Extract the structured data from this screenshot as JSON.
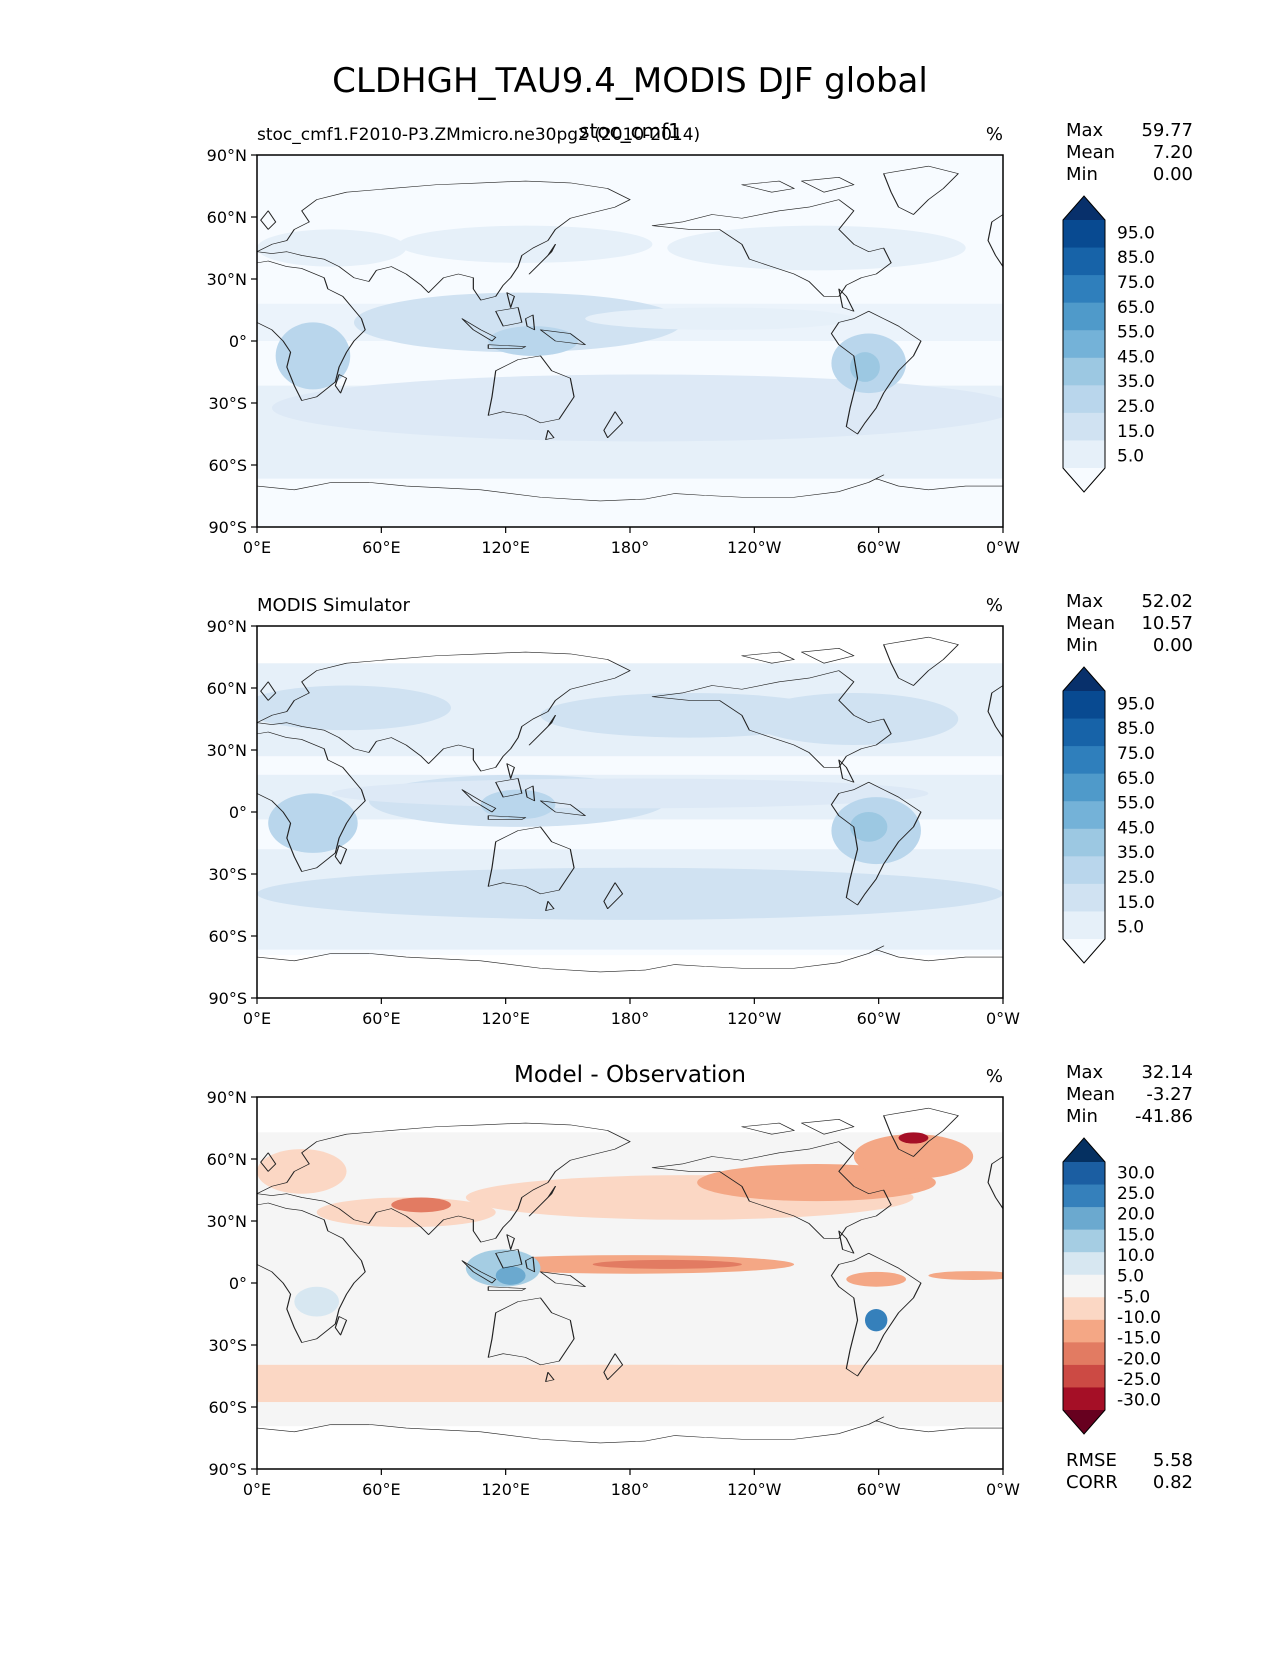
{
  "title": "CLDHGH_TAU9.4_MODIS DJF global",
  "panels": [
    {
      "left_title": "stoc_cmf1.F2010-P3.ZMmicro.ne30pg2 (2010-2014)",
      "center_title": "stoc_cmf1",
      "units": "%",
      "stats": [
        {
          "label": "Max",
          "value": "59.77"
        },
        {
          "label": "Mean",
          "value": "7.20"
        },
        {
          "label": "Min",
          "value": "0.00"
        }
      ],
      "colorbar": {
        "labels": [
          "95.0",
          "85.0",
          "75.0",
          "65.0",
          "55.0",
          "45.0",
          "35.0",
          "25.0",
          "15.0",
          "5.0"
        ],
        "colors": [
          "#f7fbff",
          "#e6f0f9",
          "#d0e2f2",
          "#b9d6ec",
          "#9cc8e2",
          "#74b2d8",
          "#4f9aca",
          "#2f7fbc",
          "#1763a8",
          "#084a91",
          "#08306b"
        ]
      }
    },
    {
      "left_title": "MODIS Simulator",
      "center_title": "",
      "units": "%",
      "stats": [
        {
          "label": "Max",
          "value": "52.02"
        },
        {
          "label": "Mean",
          "value": "10.57"
        },
        {
          "label": "Min",
          "value": "0.00"
        }
      ],
      "colorbar": {
        "labels": [
          "95.0",
          "85.0",
          "75.0",
          "65.0",
          "55.0",
          "45.0",
          "35.0",
          "25.0",
          "15.0",
          "5.0"
        ],
        "colors": [
          "#f7fbff",
          "#e6f0f9",
          "#d0e2f2",
          "#b9d6ec",
          "#9cc8e2",
          "#74b2d8",
          "#4f9aca",
          "#2f7fbc",
          "#1763a8",
          "#084a91",
          "#08306b"
        ]
      }
    },
    {
      "left_title": "",
      "center_title": "Model - Observation",
      "units": "%",
      "stats": [
        {
          "label": "Max",
          "value": "32.14"
        },
        {
          "label": "Mean",
          "value": "-3.27"
        },
        {
          "label": "Min",
          "value": "-41.86"
        }
      ],
      "extra_stats": [
        {
          "label": "RMSE",
          "value": "5.58"
        },
        {
          "label": "CORR",
          "value": "0.82"
        }
      ],
      "colorbar": {
        "labels": [
          "30.0",
          "25.0",
          "20.0",
          "15.0",
          "10.0",
          "5.0",
          "-5.0",
          "-10.0",
          "-15.0",
          "-20.0",
          "-25.0",
          "-30.0"
        ],
        "colors": [
          "#67001f",
          "#a50f26",
          "#cc4a44",
          "#e27b62",
          "#f4a785",
          "#fbd7c4",
          "#f5f5f5",
          "#d7e7f1",
          "#a5cde3",
          "#6ba9cf",
          "#3580bb",
          "#1b5ea2",
          "#053061"
        ]
      }
    }
  ],
  "axes": {
    "x_ticks": [
      "0°E",
      "60°E",
      "120°E",
      "180°",
      "120°W",
      "60°W",
      "0°W"
    ],
    "y_ticks": [
      "90°N",
      "60°N",
      "30°N",
      "0°",
      "30°S",
      "60°S",
      "90°S"
    ]
  },
  "chart_data": [
    {
      "type": "heatmap",
      "title": "stoc_cmf1",
      "subtitle": "stoc_cmf1.F2010-P3.ZMmicro.ne30pg2 (2010-2014)",
      "units": "%",
      "x_ticks": [
        "0°E",
        "60°E",
        "120°E",
        "180°",
        "120°W",
        "60°W",
        "0°W"
      ],
      "y_ticks": [
        "90°N",
        "60°N",
        "30°N",
        "0°",
        "30°S",
        "60°S",
        "90°S"
      ],
      "xlim": [
        0,
        360
      ],
      "ylim": [
        -90,
        90
      ],
      "levels": [
        5,
        15,
        25,
        35,
        45,
        55,
        65,
        75,
        85,
        95
      ],
      "colormap": "Blues",
      "max": 59.77,
      "mean": 7.2,
      "min": 0.0
    },
    {
      "type": "heatmap",
      "title": "MODIS Simulator",
      "units": "%",
      "x_ticks": [
        "0°E",
        "60°E",
        "120°E",
        "180°",
        "120°W",
        "60°W",
        "0°W"
      ],
      "y_ticks": [
        "90°N",
        "60°N",
        "30°N",
        "0°",
        "30°S",
        "60°S",
        "90°S"
      ],
      "xlim": [
        0,
        360
      ],
      "ylim": [
        -90,
        90
      ],
      "levels": [
        5,
        15,
        25,
        35,
        45,
        55,
        65,
        75,
        85,
        95
      ],
      "colormap": "Blues",
      "max": 52.02,
      "mean": 10.57,
      "min": 0.0
    },
    {
      "type": "heatmap",
      "title": "Model - Observation",
      "units": "%",
      "x_ticks": [
        "0°E",
        "60°E",
        "120°E",
        "180°",
        "120°W",
        "60°W",
        "0°W"
      ],
      "y_ticks": [
        "90°N",
        "60°N",
        "30°N",
        "0°",
        "30°S",
        "60°S",
        "90°S"
      ],
      "xlim": [
        0,
        360
      ],
      "ylim": [
        -90,
        90
      ],
      "levels": [
        -30,
        -25,
        -20,
        -15,
        -10,
        -5,
        5,
        10,
        15,
        20,
        25,
        30
      ],
      "colormap": "RdBu_r",
      "max": 32.14,
      "mean": -3.27,
      "min": -41.86,
      "rmse": 5.58,
      "corr": 0.82
    }
  ]
}
